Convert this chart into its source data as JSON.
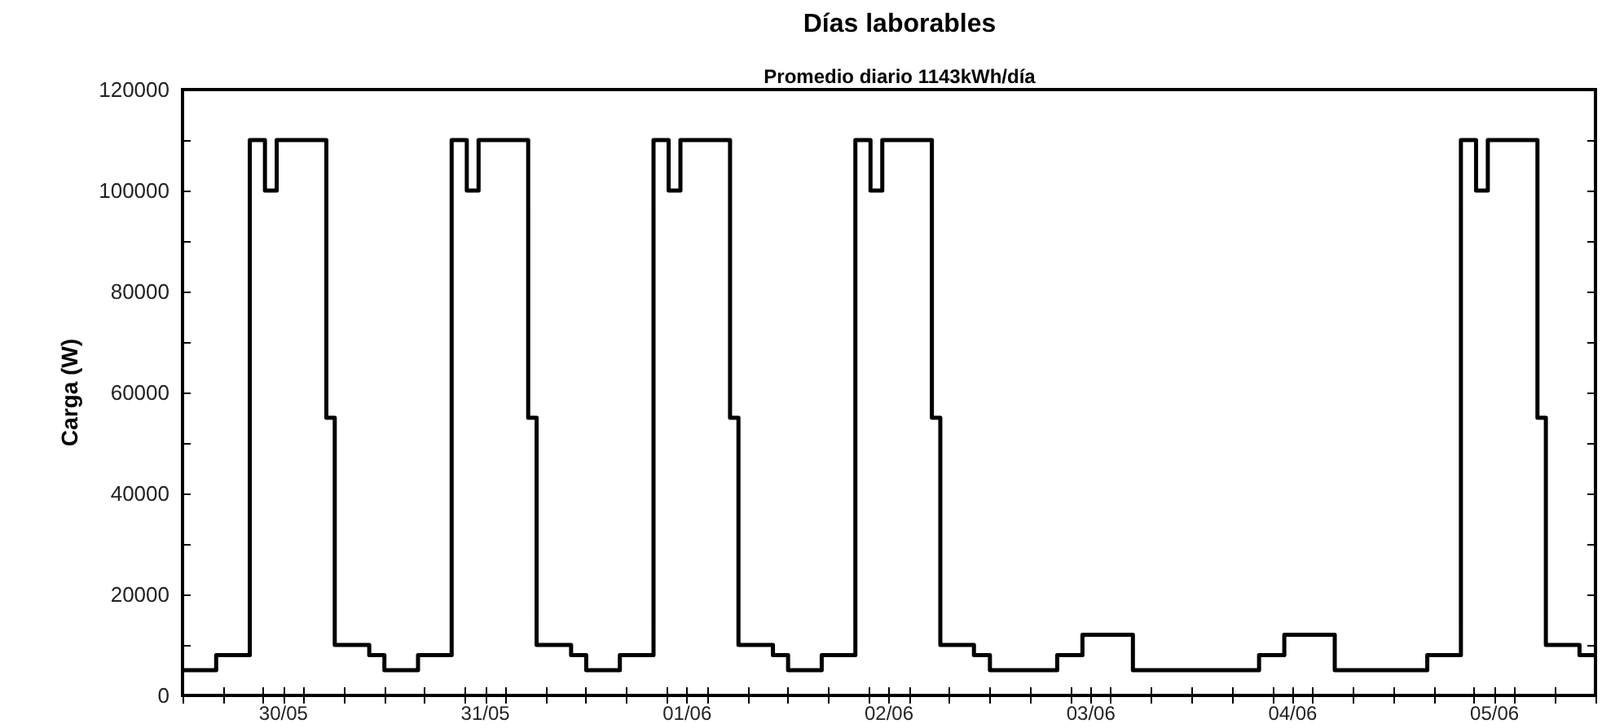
{
  "chart_data": {
    "type": "step",
    "title": "Días laborables",
    "subtitle": "Promedio diario 1143kWh/día",
    "ylabel": "Carga (W)",
    "x": [
      "--05-30T00:00",
      "--05-30T04:00",
      "--05-30T08:00",
      "--05-30T09:48",
      "--05-30T11:12",
      "--05-30T17:06",
      "--05-30T18:06",
      "--05-30T22:12",
      "--05-31T00:00",
      "--05-31T04:00",
      "--05-31T08:00",
      "--05-31T09:48",
      "--05-31T11:12",
      "--05-31T17:06",
      "--05-31T18:06",
      "--05-31T22:12",
      "--06-01T00:00",
      "--06-01T04:00",
      "--06-01T08:00",
      "--06-01T09:48",
      "--06-01T11:12",
      "--06-01T17:06",
      "--06-01T18:06",
      "--06-01T22:12",
      "--06-02T00:00",
      "--06-02T04:00",
      "--06-02T08:00",
      "--06-02T09:48",
      "--06-02T11:12",
      "--06-02T17:06",
      "--06-02T18:06",
      "--06-02T22:06",
      "--06-03T00:00",
      "--06-03T08:00",
      "--06-03T11:00",
      "--06-03T17:00",
      "--06-04T08:00",
      "--06-04T11:00",
      "--06-04T17:00",
      "--06-05T04:00",
      "--06-05T08:00",
      "--06-05T09:48",
      "--06-05T11:12",
      "--06-05T17:06",
      "--06-05T18:06",
      "--06-05T22:06",
      "--06-06T00:00"
    ],
    "series": [
      {
        "color": "#000000",
        "values": [
          5000,
          8000,
          110000,
          100000,
          110000,
          55000,
          10000,
          8000,
          5000,
          8000,
          110000,
          100000,
          110000,
          55000,
          10000,
          8000,
          5000,
          8000,
          110000,
          100000,
          110000,
          55000,
          10000,
          8000,
          5000,
          8000,
          110000,
          100000,
          110000,
          55000,
          10000,
          8000,
          5000,
          8000,
          12000,
          5000,
          8000,
          12000,
          5000,
          8000,
          110000,
          100000,
          110000,
          55000,
          10000,
          8000,
          8000
        ]
      }
    ],
    "xlim": [
      "--05-30T00:00",
      "--06-06T00:00"
    ],
    "xticks": [
      {
        "value": "--05-30T00:00",
        "label": null
      },
      {
        "value": "--05-30T04:48",
        "label": null
      },
      {
        "value": "--05-30T09:36",
        "label": null
      },
      {
        "value": "--05-30T12:00",
        "label": "30/05"
      },
      {
        "value": "--05-30T14:24",
        "label": null
      },
      {
        "value": "--05-30T19:12",
        "label": null
      },
      {
        "value": "--05-31T00:00",
        "label": null
      },
      {
        "value": "--05-31T04:48",
        "label": null
      },
      {
        "value": "--05-31T09:36",
        "label": null
      },
      {
        "value": "--05-31T12:00",
        "label": "31/05"
      },
      {
        "value": "--05-31T14:24",
        "label": null
      },
      {
        "value": "--05-31T19:12",
        "label": null
      },
      {
        "value": "--06-01T00:00",
        "label": null
      },
      {
        "value": "--06-01T04:48",
        "label": null
      },
      {
        "value": "--06-01T09:36",
        "label": null
      },
      {
        "value": "--06-01T12:00",
        "label": "01/06"
      },
      {
        "value": "--06-01T14:24",
        "label": null
      },
      {
        "value": "--06-01T19:12",
        "label": null
      },
      {
        "value": "--06-02T00:00",
        "label": null
      },
      {
        "value": "--06-02T04:48",
        "label": null
      },
      {
        "value": "--06-02T09:36",
        "label": null
      },
      {
        "value": "--06-02T12:00",
        "label": "02/06"
      },
      {
        "value": "--06-02T14:24",
        "label": null
      },
      {
        "value": "--06-02T19:12",
        "label": null
      },
      {
        "value": "--06-03T00:00",
        "label": null
      },
      {
        "value": "--06-03T04:48",
        "label": null
      },
      {
        "value": "--06-03T09:36",
        "label": null
      },
      {
        "value": "--06-03T12:00",
        "label": "03/06"
      },
      {
        "value": "--06-03T14:24",
        "label": null
      },
      {
        "value": "--06-03T19:12",
        "label": null
      },
      {
        "value": "--06-04T00:00",
        "label": null
      },
      {
        "value": "--06-04T04:48",
        "label": null
      },
      {
        "value": "--06-04T09:36",
        "label": null
      },
      {
        "value": "--06-04T12:00",
        "label": "04/06"
      },
      {
        "value": "--06-04T14:24",
        "label": null
      },
      {
        "value": "--06-04T19:12",
        "label": null
      },
      {
        "value": "--06-05T00:00",
        "label": null
      },
      {
        "value": "--06-05T04:48",
        "label": null
      },
      {
        "value": "--06-05T09:36",
        "label": null
      },
      {
        "value": "--06-05T12:00",
        "label": "05/06"
      },
      {
        "value": "--06-05T14:24",
        "label": null
      },
      {
        "value": "--06-05T19:12",
        "label": null
      },
      {
        "value": "--06-06T00:00",
        "label": null
      }
    ],
    "ylim": [
      0,
      120000
    ],
    "yticks": [
      0,
      {
        "value": 10000,
        "label": null
      },
      20000,
      {
        "value": 30000,
        "label": null
      },
      40000,
      {
        "value": 50000,
        "label": null
      },
      60000,
      {
        "value": 70000,
        "label": null
      },
      80000,
      {
        "value": 90000,
        "label": null
      },
      100000,
      {
        "value": 110000,
        "label": null
      },
      120000
    ],
    "marker": "none",
    "line_style": "solid"
  }
}
